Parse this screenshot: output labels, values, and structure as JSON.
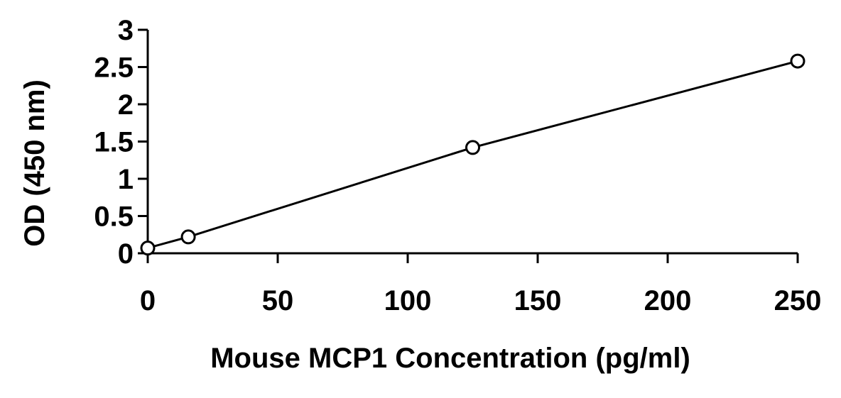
{
  "chart_data": {
    "type": "scatter",
    "xlabel": "Mouse MCP1 Concentration (pg/ml)",
    "ylabel": "OD (450 nm)",
    "xlim": [
      0,
      250
    ],
    "ylim": [
      0,
      3
    ],
    "xticks": [
      0,
      50,
      100,
      150,
      200,
      250
    ],
    "yticks": [
      0,
      0.5,
      1,
      1.5,
      2,
      2.5,
      3
    ],
    "xtick_labels": [
      "0",
      "50",
      "100",
      "150",
      "200",
      "250"
    ],
    "ytick_labels": [
      "0",
      "0.5",
      "1",
      "1.5",
      "2",
      "2.5",
      "3"
    ],
    "grid": false,
    "legend": "none",
    "series": [
      {
        "x": [
          0,
          15.6,
          125,
          250
        ],
        "y": [
          0.07,
          0.22,
          1.42,
          2.58
        ],
        "marker": "open-circle",
        "fit_line": true,
        "color": "#000000"
      }
    ]
  }
}
